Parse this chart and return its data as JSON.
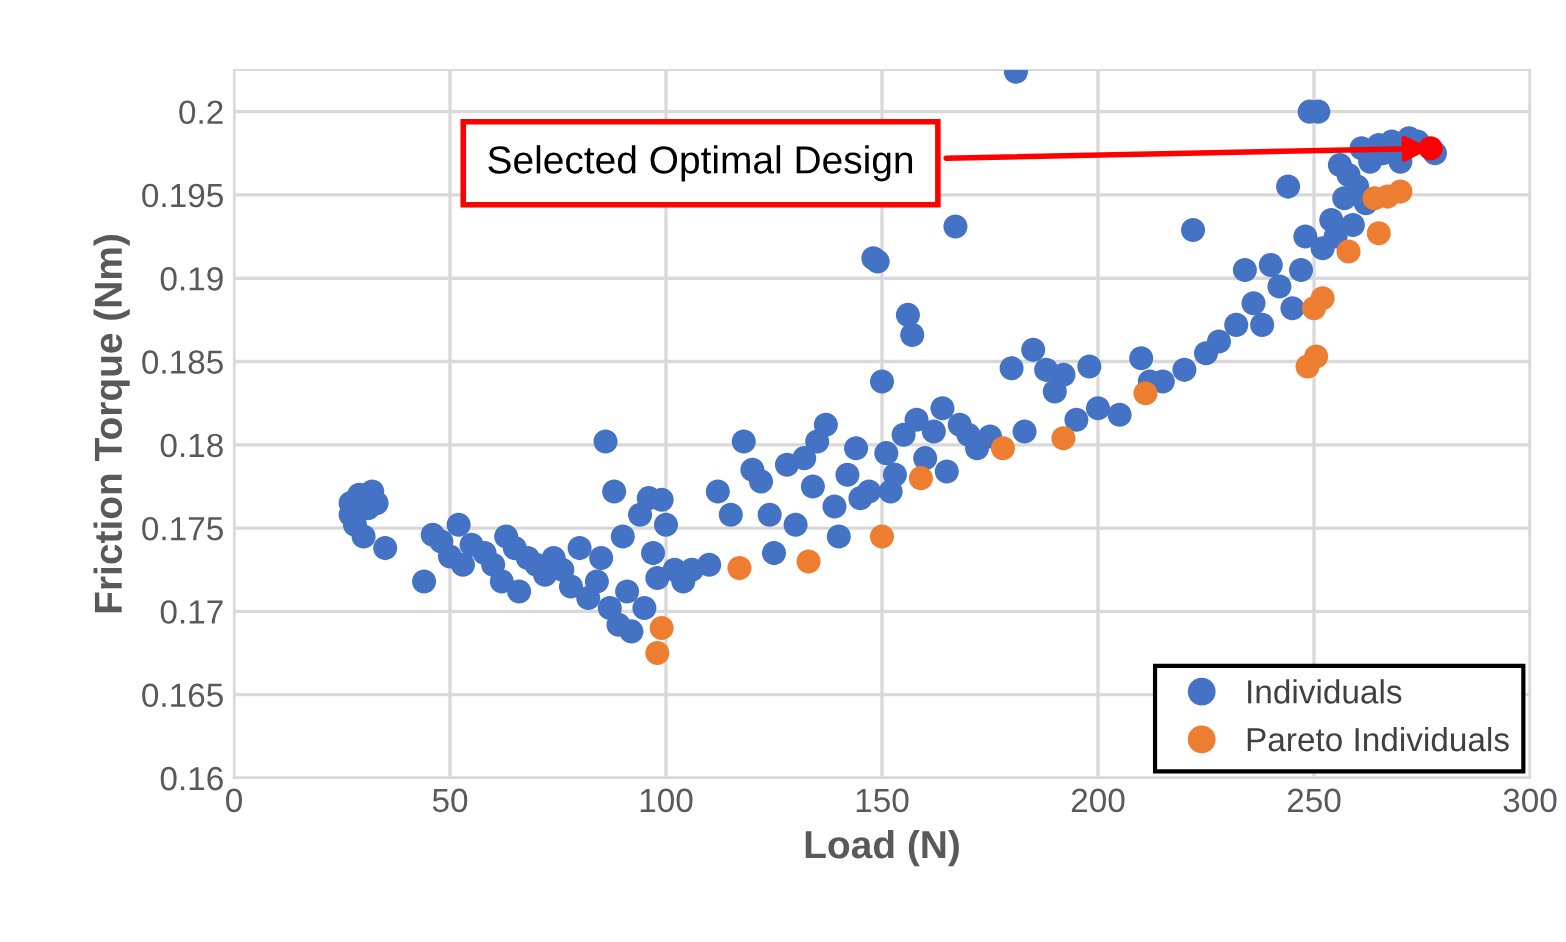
{
  "chart_data": {
    "type": "scatter",
    "xlabel": "Load (N)",
    "ylabel": "Friction Torque (Nm)",
    "xlim": [
      0,
      300
    ],
    "xticks": [
      0,
      50,
      100,
      150,
      200,
      250,
      300
    ],
    "ylim": [
      0.16,
      0.2025
    ],
    "yticks": [
      0.16,
      0.165,
      0.17,
      0.175,
      0.18,
      0.185,
      0.19,
      0.195,
      0.2
    ],
    "grid": true,
    "legend": "bottom right",
    "marker": "circle",
    "annotations": [
      {
        "text": "Selected Optimal Design",
        "x": 277,
        "y": 0.1978
      }
    ],
    "series": [
      {
        "name": "Individuals",
        "color": "#4472c4",
        "x": [
          27,
          28,
          29,
          31,
          32,
          33,
          30,
          35,
          27,
          44,
          46,
          48,
          50,
          52,
          53,
          55,
          58,
          60,
          62,
          63,
          65,
          66,
          68,
          70,
          72,
          74,
          76,
          78,
          80,
          82,
          84,
          85,
          86,
          87,
          88,
          89,
          90,
          91,
          92,
          94,
          95,
          96,
          97,
          98,
          99,
          100,
          102,
          104,
          106,
          110,
          112,
          115,
          118,
          120,
          122,
          124,
          125,
          128,
          130,
          132,
          134,
          135,
          137,
          139,
          140,
          142,
          144,
          145,
          147,
          148,
          149,
          150,
          151,
          152,
          153,
          155,
          156,
          157,
          158,
          160,
          162,
          164,
          165,
          167,
          168,
          170,
          172,
          175,
          180,
          181,
          183,
          185,
          188,
          190,
          192,
          195,
          198,
          200,
          205,
          210,
          212,
          215,
          220,
          222,
          225,
          228,
          232,
          234,
          236,
          238,
          240,
          242,
          244,
          245,
          247,
          248,
          249,
          251,
          252,
          254,
          255,
          256,
          257,
          258,
          260,
          262,
          263,
          265,
          266,
          268,
          270,
          272,
          274,
          278,
          259,
          261
        ],
        "values": [
          0.1765,
          0.1752,
          0.177,
          0.1762,
          0.1772,
          0.1765,
          0.1745,
          0.1738,
          0.1758,
          0.1718,
          0.1746,
          0.1742,
          0.1733,
          0.1752,
          0.1728,
          0.174,
          0.1735,
          0.1728,
          0.1718,
          0.1745,
          0.1738,
          0.1712,
          0.1732,
          0.1728,
          0.1722,
          0.1732,
          0.1725,
          0.1715,
          0.1738,
          0.1708,
          0.1718,
          0.1732,
          0.1802,
          0.1702,
          0.1772,
          0.1692,
          0.1745,
          0.1712,
          0.1688,
          0.1758,
          0.1702,
          0.1768,
          0.1735,
          0.172,
          0.1767,
          0.1752,
          0.1725,
          0.1718,
          0.1725,
          0.1728,
          0.1772,
          0.1758,
          0.1802,
          0.1785,
          0.1778,
          0.1758,
          0.1735,
          0.1788,
          0.1752,
          0.1792,
          0.1775,
          0.1802,
          0.1812,
          0.1763,
          0.1745,
          0.1782,
          0.1798,
          0.1768,
          0.1772,
          0.1912,
          0.191,
          0.1838,
          0.1795,
          0.1772,
          0.1782,
          0.1806,
          0.1878,
          0.1866,
          0.1815,
          0.1792,
          0.1808,
          0.1822,
          0.1784,
          0.1931,
          0.1812,
          0.1806,
          0.1798,
          0.1805,
          0.1846,
          0.2024,
          0.1808,
          0.1857,
          0.1845,
          0.1832,
          0.1842,
          0.1815,
          0.1847,
          0.1822,
          0.1818,
          0.1852,
          0.1838,
          0.1838,
          0.1845,
          0.1929,
          0.1855,
          0.1862,
          0.1872,
          0.1905,
          0.1885,
          0.1872,
          0.1908,
          0.1895,
          0.1955,
          0.1882,
          0.1905,
          0.1925,
          0.2,
          0.2,
          0.1918,
          0.1935,
          0.1925,
          0.1968,
          0.1948,
          0.1962,
          0.1955,
          0.1945,
          0.197,
          0.198,
          0.1975,
          0.1982,
          0.197,
          0.1984,
          0.1982,
          0.1975,
          0.1932,
          0.1978
        ]
      },
      {
        "name": "Pareto Individuals",
        "color": "#ed7d31",
        "x": [
          98,
          99,
          117,
          133,
          150,
          159,
          178,
          192,
          211,
          248.5,
          250.5,
          250,
          252,
          258,
          265,
          264,
          267,
          270
        ],
        "values": [
          0.1675,
          0.169,
          0.1726,
          0.173,
          0.1745,
          0.178,
          0.1798,
          0.1804,
          0.1831,
          0.1847,
          0.1853,
          0.1882,
          0.1888,
          0.1916,
          0.1927,
          0.1948,
          0.1949,
          0.1952
        ]
      },
      {
        "color": "#ff0000",
        "x": [
          277
        ],
        "values": [
          0.1978
        ]
      }
    ]
  }
}
